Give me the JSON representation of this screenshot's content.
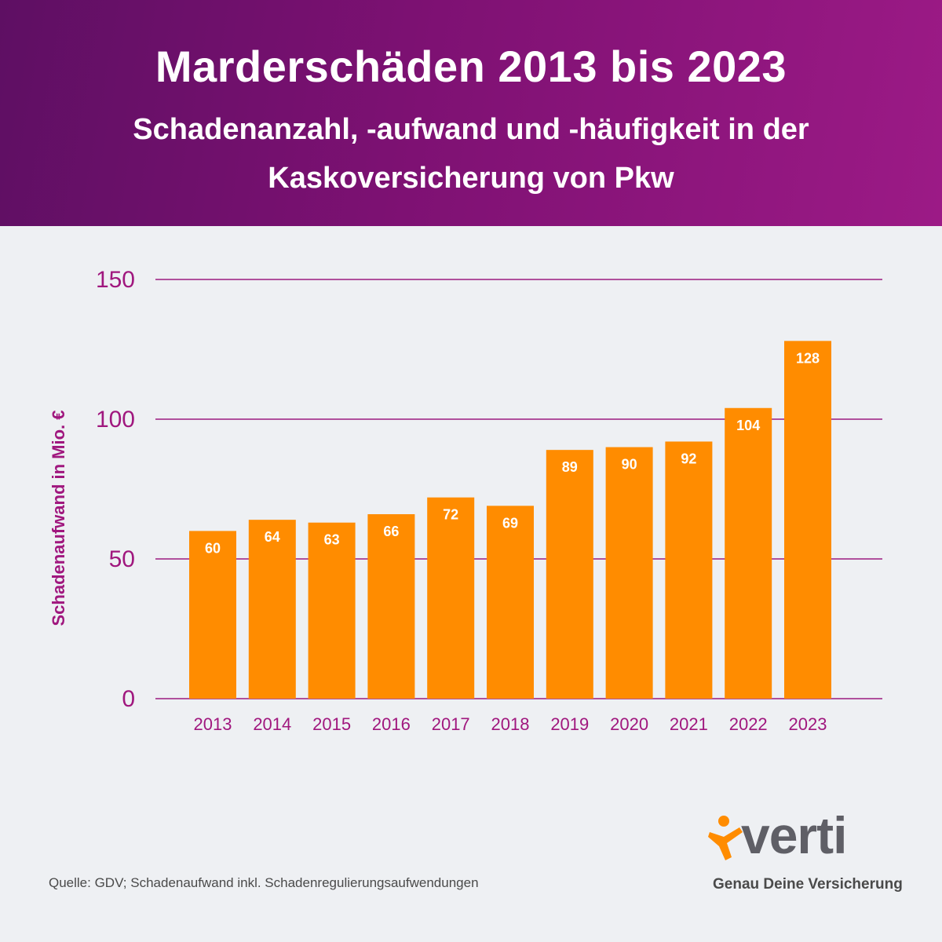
{
  "header": {
    "title": "Marderschäden 2013 bis 2023",
    "subtitle": "Schadenanzahl, -aufwand und -häufigkeit in der Kaskoversicherung von Pkw"
  },
  "colors": {
    "bar": "#ff8c00",
    "axis_text": "#a0177e",
    "gridline": "#9b1b80",
    "value_label": "#ffffff"
  },
  "chart_data": {
    "type": "bar",
    "title": "Marderschäden 2013 bis 2023",
    "xlabel": "",
    "ylabel": "Schadenaufwand in Mio. €",
    "categories": [
      "2013",
      "2014",
      "2015",
      "2016",
      "2017",
      "2018",
      "2019",
      "2020",
      "2021",
      "2022",
      "2023"
    ],
    "values": [
      60,
      64,
      63,
      66,
      72,
      69,
      89,
      90,
      92,
      104,
      128
    ],
    "ylim": [
      0,
      150
    ],
    "yticks": [
      0,
      50,
      100,
      150
    ],
    "grid": true,
    "legend": "none"
  },
  "footer": {
    "source": "Quelle: GDV; Schadenaufwand inkl. Schadenregulierungsaufwendungen",
    "brand": "verti",
    "tagline": "Genau Deine Versicherung"
  }
}
